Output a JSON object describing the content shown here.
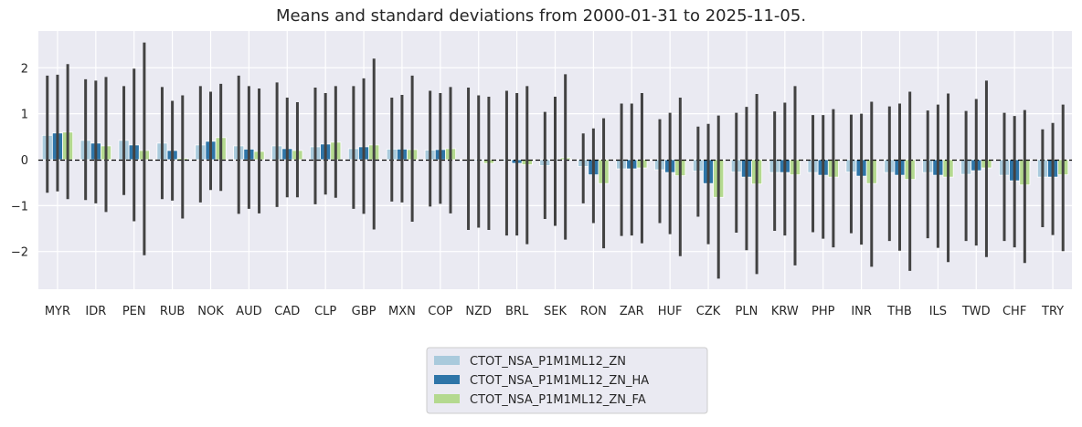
{
  "chart_data": {
    "type": "bar",
    "title": "Means and standard deviations from 2000-01-31 to 2025-11-05.",
    "xlabel": "",
    "ylabel": "",
    "ylim": [
      -2.82,
      2.8
    ],
    "yticks": [
      -2,
      -1,
      0,
      1,
      2
    ],
    "ytick_labels": [
      "−2",
      "−1",
      "0",
      "1",
      "2"
    ],
    "grid": true,
    "legend_position": "bottom-center",
    "zero_line": "dashed",
    "categories": [
      "MYR",
      "IDR",
      "PEN",
      "RUB",
      "NOK",
      "AUD",
      "CAD",
      "CLP",
      "GBP",
      "MXN",
      "COP",
      "NZD",
      "BRL",
      "SEK",
      "RON",
      "ZAR",
      "HUF",
      "CZK",
      "PLN",
      "KRW",
      "PHP",
      "INR",
      "THB",
      "ILS",
      "TWD",
      "CHF",
      "TRY"
    ],
    "series": [
      {
        "name": "CTOT_NSA_P1M1ML12_ZN",
        "color": "#a9cadc",
        "values": [
          0.53,
          0.42,
          0.42,
          0.36,
          0.32,
          0.3,
          0.3,
          0.28,
          0.24,
          0.23,
          0.21,
          0.01,
          -0.03,
          -0.13,
          -0.15,
          -0.2,
          -0.22,
          -0.25,
          -0.27,
          -0.28,
          -0.28,
          -0.27,
          -0.28,
          -0.28,
          -0.32,
          -0.34,
          -0.38
        ],
        "error_low": [
          -0.72,
          -0.88,
          -0.77,
          -0.86,
          -0.93,
          -1.18,
          -1.03,
          -0.97,
          -1.07,
          -0.91,
          -1.02,
          -1.53,
          -1.65,
          -1.29,
          -0.95,
          -1.66,
          -1.38,
          -1.24,
          -1.59,
          -1.55,
          -1.58,
          -1.6,
          -1.77,
          -1.71,
          -1.77,
          -1.77,
          -1.47
        ],
        "error_high": [
          1.83,
          1.75,
          1.6,
          1.58,
          1.6,
          1.83,
          1.68,
          1.57,
          1.6,
          1.35,
          1.5,
          1.57,
          1.5,
          1.04,
          0.57,
          1.22,
          0.88,
          0.72,
          1.02,
          1.05,
          0.97,
          0.98,
          1.16,
          1.07,
          1.06,
          1.02,
          0.66
        ]
      },
      {
        "name": "CTOT_NSA_P1M1ML12_ZN_HA",
        "color": "#2e75a8",
        "values": [
          0.58,
          0.36,
          0.32,
          0.2,
          0.4,
          0.23,
          0.24,
          0.34,
          0.28,
          0.23,
          0.22,
          -0.02,
          -0.08,
          -0.02,
          -0.33,
          -0.2,
          -0.28,
          -0.52,
          -0.38,
          -0.28,
          -0.34,
          -0.36,
          -0.34,
          -0.34,
          -0.24,
          -0.46,
          -0.38
        ],
        "error_low": [
          -0.69,
          -0.95,
          -1.34,
          -0.89,
          -0.66,
          -1.07,
          -0.82,
          -0.76,
          -1.18,
          -0.93,
          -0.96,
          -1.48,
          -1.65,
          -1.44,
          -1.38,
          -1.65,
          -1.62,
          -1.84,
          -1.97,
          -1.65,
          -1.72,
          -1.85,
          -1.98,
          -1.92,
          -1.87,
          -1.91,
          -1.64
        ],
        "error_high": [
          1.85,
          1.72,
          1.98,
          1.28,
          1.48,
          1.6,
          1.35,
          1.45,
          1.77,
          1.41,
          1.45,
          1.4,
          1.45,
          1.37,
          0.68,
          1.22,
          1.02,
          0.78,
          1.15,
          1.24,
          0.97,
          1.0,
          1.22,
          1.2,
          1.32,
          0.95,
          0.8
        ]
      },
      {
        "name": "CTOT_NSA_P1M1ML12_ZN_FA",
        "color": "#b4d98f",
        "values": [
          0.6,
          0.3,
          0.2,
          0.03,
          0.48,
          0.18,
          0.2,
          0.38,
          0.32,
          0.22,
          0.24,
          -0.08,
          -0.11,
          0.04,
          -0.52,
          -0.18,
          -0.35,
          -0.82,
          -0.53,
          -0.33,
          -0.38,
          -0.52,
          -0.43,
          -0.38,
          -0.18,
          -0.55,
          -0.33
        ],
        "error_low": [
          -0.86,
          -1.14,
          -2.08,
          -1.28,
          -0.68,
          -1.17,
          -0.82,
          -0.83,
          -1.52,
          -1.35,
          -1.17,
          -1.53,
          -1.84,
          -1.74,
          -1.93,
          -1.82,
          -2.1,
          -2.59,
          -2.49,
          -2.3,
          -1.91,
          -2.33,
          -2.42,
          -2.23,
          -2.12,
          -2.25,
          -1.99
        ],
        "error_high": [
          2.08,
          1.8,
          2.55,
          1.4,
          1.65,
          1.55,
          1.25,
          1.6,
          2.2,
          1.83,
          1.58,
          1.37,
          1.6,
          1.86,
          0.9,
          1.45,
          1.35,
          0.96,
          1.43,
          1.6,
          1.1,
          1.26,
          1.48,
          1.44,
          1.72,
          1.08,
          1.2
        ]
      }
    ]
  }
}
